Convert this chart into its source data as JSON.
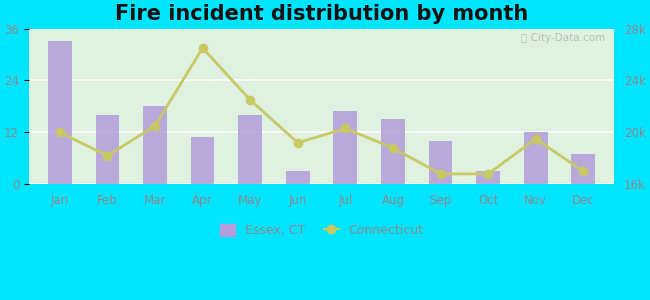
{
  "title": "Fire incident distribution by month",
  "months": [
    "Jan",
    "Feb",
    "Mar",
    "Apr",
    "May",
    "Jun",
    "Jul",
    "Aug",
    "Sep",
    "Oct",
    "Nov",
    "Dec"
  ],
  "essex_values": [
    33,
    16,
    18,
    11,
    16,
    3,
    17,
    15,
    10,
    3,
    12,
    7
  ],
  "connecticut_values": [
    20000,
    18200,
    20500,
    26500,
    22500,
    19200,
    20300,
    18800,
    16800,
    16800,
    19500,
    17000
  ],
  "bar_color": "#b39ddb",
  "line_color": "#c8c864",
  "line_marker": "o",
  "background_outer": "#00e5ff",
  "background_inner_top": "#e8f5e9",
  "background_inner_bottom": "#f0fff0",
  "left_ylim": [
    0,
    36
  ],
  "left_yticks": [
    0,
    12,
    24,
    36
  ],
  "right_ylim": [
    16000,
    28000
  ],
  "right_yticks": [
    16000,
    20000,
    24000,
    28000
  ],
  "right_yticklabels": [
    "16k",
    "20k",
    "24k",
    "28k"
  ],
  "title_fontsize": 15,
  "legend_essex": "Essex, CT",
  "legend_connecticut": "Connecticut",
  "tick_color": "#888888"
}
